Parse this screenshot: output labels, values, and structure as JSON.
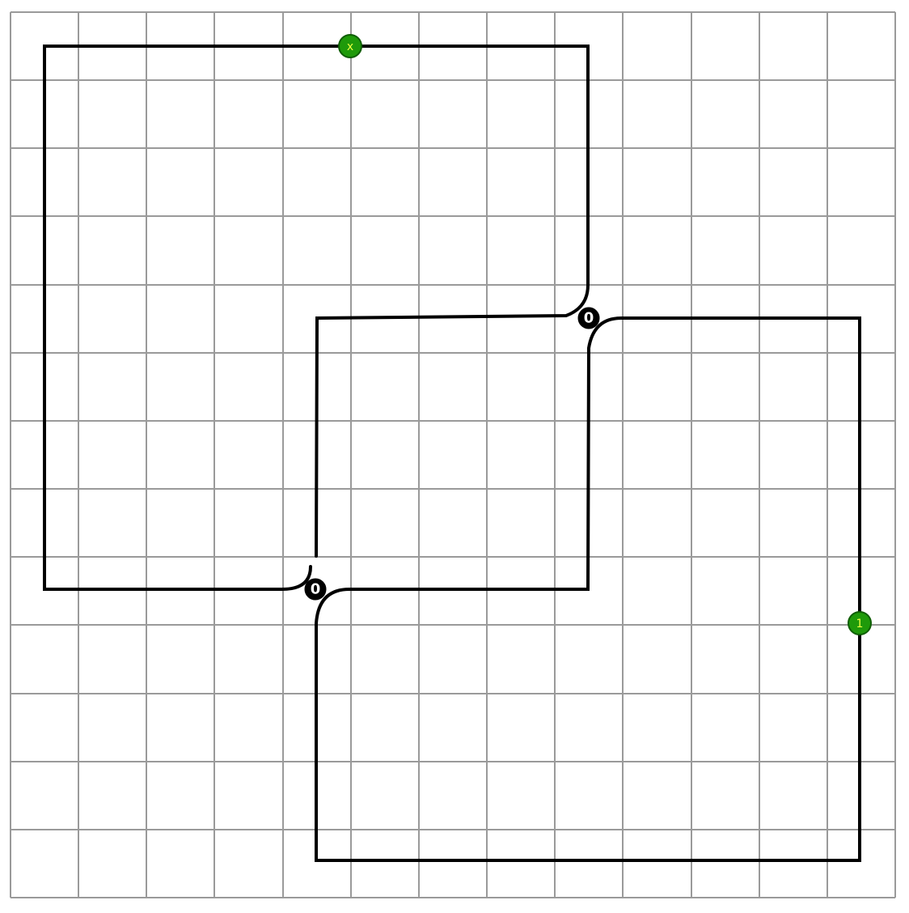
{
  "diagram": {
    "grid": {
      "columns": 13,
      "rows": 13,
      "line_color": "#9a9a9a"
    },
    "knot_color": "#000000",
    "crossings": [
      {
        "id": "crossing-a",
        "label": "0"
      },
      {
        "id": "crossing-b",
        "label": "0"
      }
    ],
    "markers": [
      {
        "id": "marker-x",
        "label": "x",
        "color": "#1f9a0a"
      },
      {
        "id": "marker-1",
        "label": "1",
        "color": "#1f9a0a"
      }
    ]
  }
}
